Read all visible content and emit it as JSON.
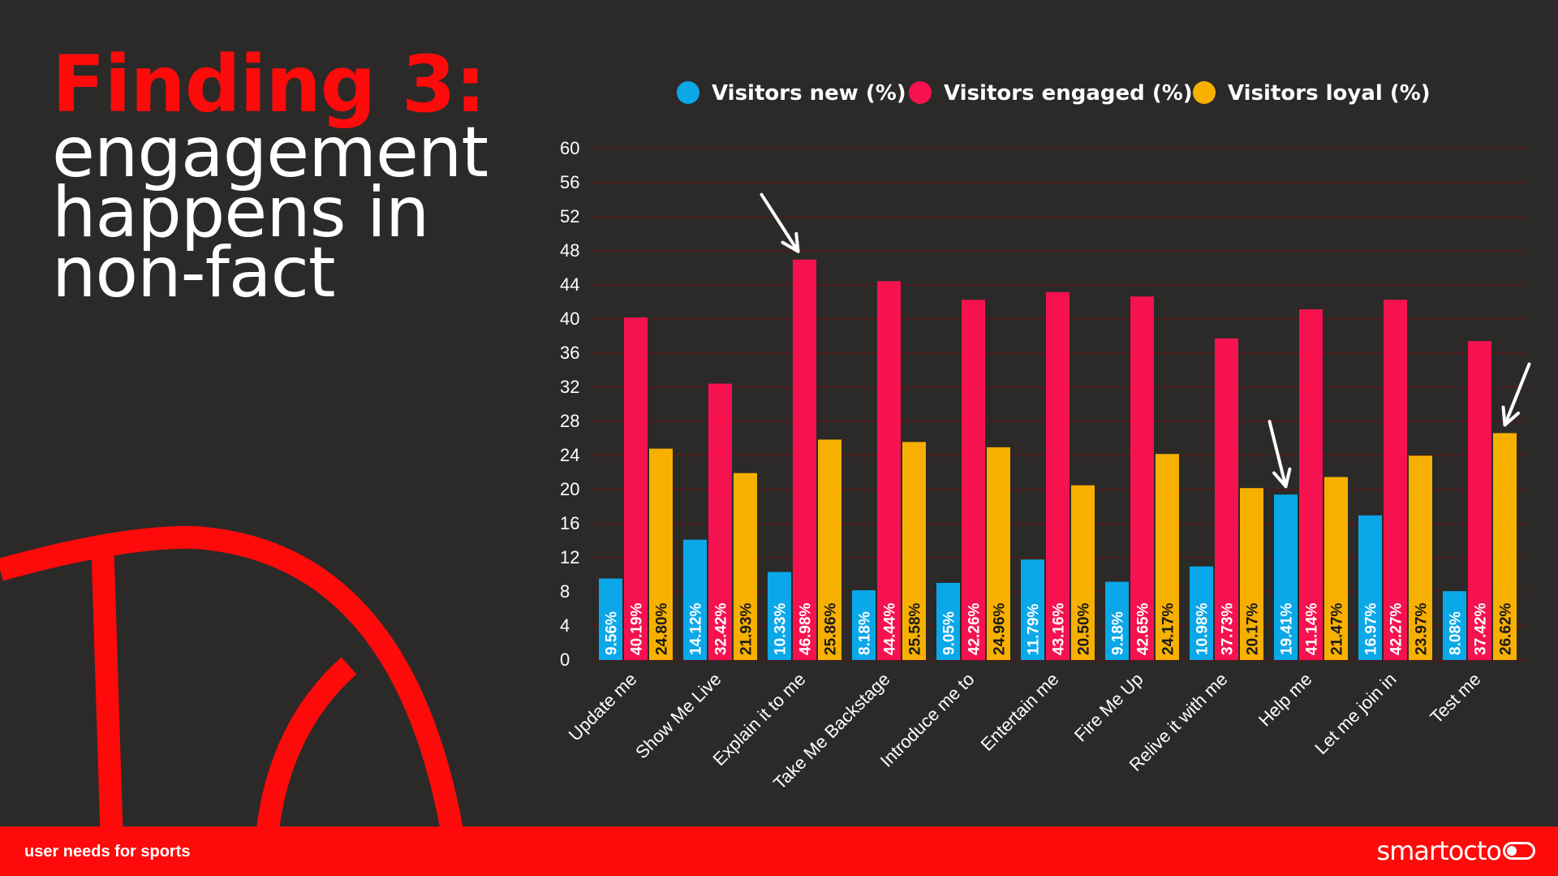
{
  "header": {
    "title_line1": "Finding 3:",
    "title_line2": "engagement",
    "title_line3": "happens in",
    "title_line4": "non-fact"
  },
  "footer": {
    "label": "user needs for sports",
    "logo_text": "smartocto"
  },
  "colors": {
    "background": "#2b2a29",
    "accent_red": "#ff0a0a",
    "new": "#0aa8e8",
    "engaged": "#f5124f",
    "loyal": "#f7b000"
  },
  "chart_data": {
    "type": "bar",
    "title": "",
    "xlabel": "",
    "ylabel": "",
    "ylim": [
      0,
      60
    ],
    "yticks": [
      0,
      4,
      8,
      12,
      16,
      20,
      24,
      28,
      32,
      36,
      40,
      44,
      48,
      52,
      56,
      60
    ],
    "grid": true,
    "legend_position": "top",
    "categories": [
      "Update me",
      "Show Me Live",
      "Explain it to me",
      "Take Me Backstage",
      "Introduce me to",
      "Entertain me",
      "Fire Me Up",
      "Relive it with me",
      "Help me",
      "Let me join in",
      "Test me"
    ],
    "series": [
      {
        "name": "Visitors new (%)",
        "color": "#0aa8e8",
        "values": [
          9.56,
          14.12,
          10.33,
          8.18,
          9.05,
          11.79,
          9.18,
          10.98,
          19.41,
          16.97,
          8.08
        ],
        "labels": [
          "9.56%",
          "14.12%",
          "10.33%",
          "8.18%",
          "9.05%",
          "11.79%",
          "9.18%",
          "10.98%",
          "19.41%",
          "16.97%",
          "8.08%"
        ]
      },
      {
        "name": "Visitors engaged (%)",
        "color": "#f5124f",
        "values": [
          40.19,
          32.42,
          46.98,
          44.44,
          42.26,
          43.16,
          42.65,
          37.73,
          41.14,
          42.27,
          37.42
        ],
        "labels": [
          "40.19%",
          "32.42%",
          "46.98%",
          "44.44%",
          "42.26%",
          "43.16%",
          "42.65%",
          "37.73%",
          "41.14%",
          "42.27%",
          "37.42%"
        ]
      },
      {
        "name": "Visitors loyal (%)",
        "color": "#f7b000",
        "values": [
          24.8,
          21.93,
          25.86,
          25.58,
          24.96,
          20.5,
          24.17,
          20.17,
          21.47,
          23.97,
          26.62
        ],
        "labels": [
          "24.80%",
          "21.93%",
          "25.86%",
          "25.58%",
          "24.96%",
          "20.50%",
          "24.17%",
          "20.17%",
          "21.47%",
          "23.97%",
          "26.62%"
        ]
      }
    ],
    "annotations": [
      {
        "type": "arrow",
        "category": "Explain it to me",
        "series": "Visitors engaged (%)"
      },
      {
        "type": "arrow",
        "category": "Help me",
        "series": "Visitors new (%)"
      },
      {
        "type": "arrow",
        "category": "Test me",
        "series": "Visitors loyal (%)"
      }
    ]
  }
}
